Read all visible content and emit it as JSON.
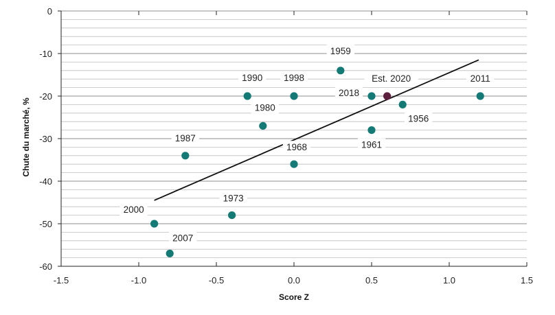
{
  "chart_data": {
    "type": "scatter",
    "xlabel": "Score Z",
    "ylabel": "Chute du marché, %",
    "xlim": [
      -1.5,
      1.5
    ],
    "ylim": [
      -60,
      0
    ],
    "xticks": [
      -1.5,
      -1.0,
      -0.5,
      0.0,
      0.5,
      1.0,
      1.5
    ],
    "xtick_labels": [
      "-1.5",
      "-1.0",
      "-0.5",
      "0.0",
      "0.5",
      "1.0",
      "1.5"
    ],
    "yticks": [
      0,
      -10,
      -20,
      -30,
      -40,
      -50,
      -60
    ],
    "ytick_labels": [
      "0",
      "-10",
      "-20",
      "-30",
      "-40",
      "-50",
      "-60"
    ],
    "grid": "horizontal dense",
    "colors": {
      "point": "#137a75",
      "highlight": "#5e1f3f",
      "line": "#111111",
      "grid": "#bdbdbd"
    },
    "points": [
      {
        "label": "1959",
        "x": 0.3,
        "y": -14
      },
      {
        "label": "1990",
        "x": -0.3,
        "y": -20
      },
      {
        "label": "1998",
        "x": 0.0,
        "y": -20
      },
      {
        "label": "2018",
        "x": 0.5,
        "y": -20
      },
      {
        "label": "Est. 2020",
        "x": 0.6,
        "y": -20,
        "highlight": true
      },
      {
        "label": "2011",
        "x": 1.2,
        "y": -20
      },
      {
        "label": "1956",
        "x": 0.7,
        "y": -22
      },
      {
        "label": "1980",
        "x": -0.2,
        "y": -27
      },
      {
        "label": "1961",
        "x": 0.5,
        "y": -28
      },
      {
        "label": "1987",
        "x": -0.7,
        "y": -34
      },
      {
        "label": "1968",
        "x": 0.0,
        "y": -36
      },
      {
        "label": "1973",
        "x": -0.4,
        "y": -48
      },
      {
        "label": "2000",
        "x": -0.9,
        "y": -50
      },
      {
        "label": "2007",
        "x": -0.8,
        "y": -57
      }
    ],
    "trendline": {
      "x": [
        -0.9,
        1.19
      ],
      "y": [
        -44.5,
        -11.5
      ]
    }
  }
}
